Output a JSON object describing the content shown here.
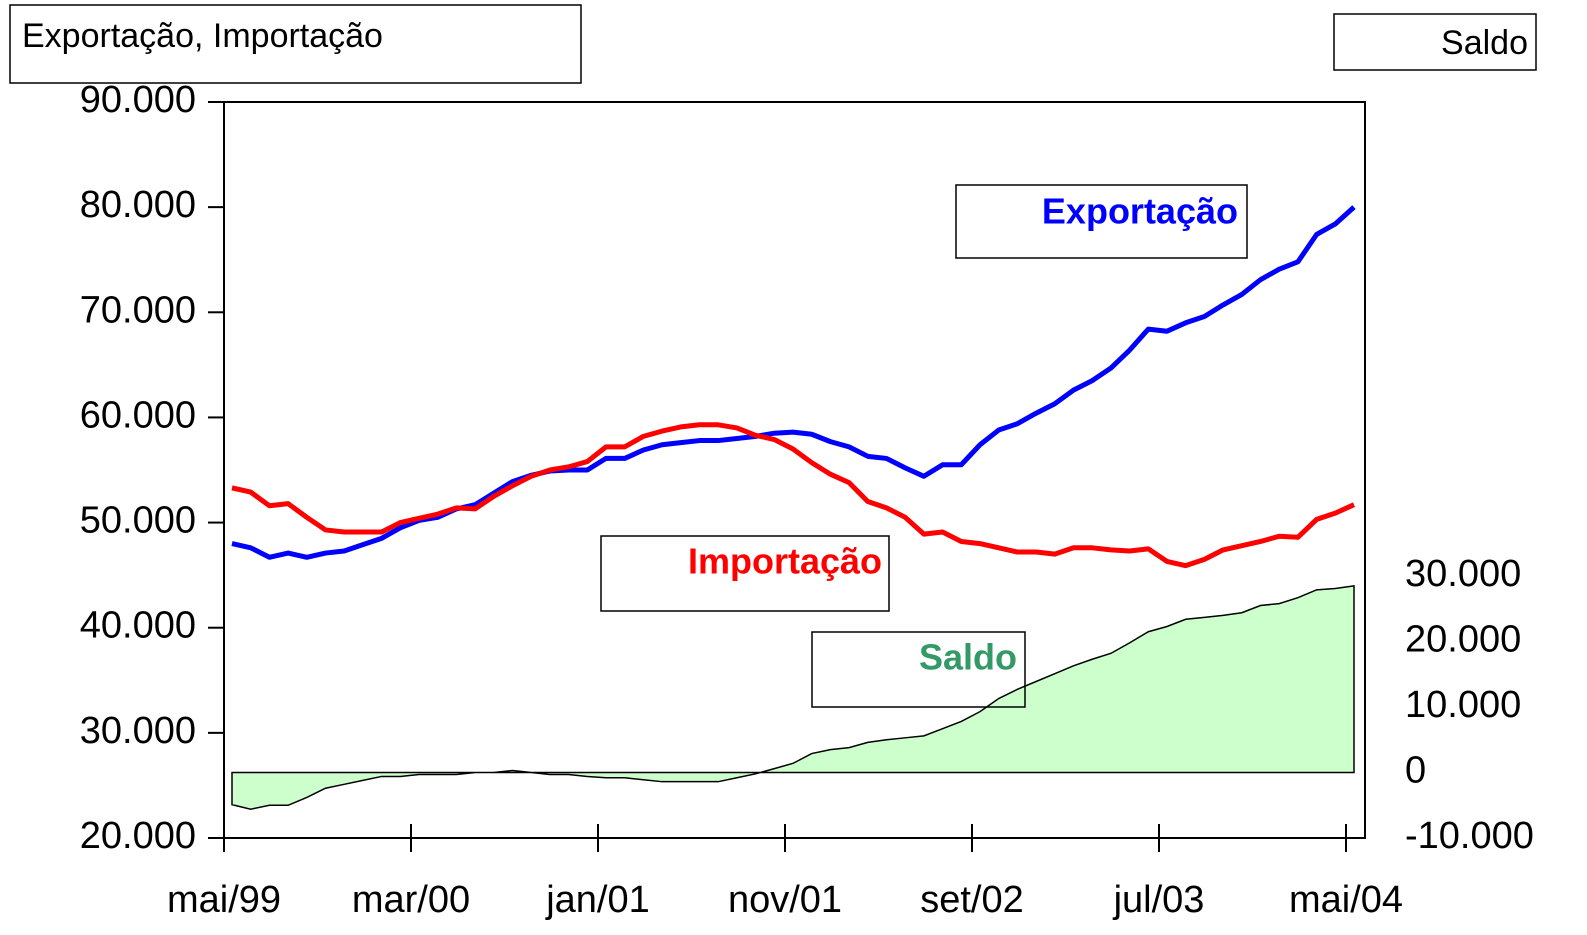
{
  "chart_data": {
    "type": "line",
    "y_title": "Exportação, Importação",
    "y2_title": "Saldo",
    "categories": [
      "mai/99",
      null,
      null,
      null,
      null,
      null,
      null,
      null,
      null,
      null,
      "mar/00",
      null,
      null,
      null,
      null,
      null,
      null,
      null,
      null,
      null,
      "jan/01",
      null,
      null,
      null,
      null,
      null,
      null,
      null,
      null,
      null,
      "nov/01",
      null,
      null,
      null,
      null,
      null,
      null,
      null,
      null,
      null,
      "set/02",
      null,
      null,
      null,
      null,
      null,
      null,
      null,
      null,
      null,
      "jul/03",
      null,
      null,
      null,
      null,
      null,
      null,
      null,
      null,
      null,
      "mai/04"
    ],
    "ylim": [
      20000,
      90000
    ],
    "yticks": [
      {
        "value": 20000,
        "label": "20.000"
      },
      {
        "value": 30000,
        "label": "30.000"
      },
      {
        "value": 40000,
        "label": "40.000"
      },
      {
        "value": 50000,
        "label": "50.000"
      },
      {
        "value": 60000,
        "label": "60.000"
      },
      {
        "value": 70000,
        "label": "70.000"
      },
      {
        "value": 80000,
        "label": "80.000"
      },
      {
        "value": 90000,
        "label": "90.000"
      }
    ],
    "y2lim": [
      -10000,
      102400
    ],
    "y2ticks": [
      {
        "value": -10000,
        "label": "-10.000"
      },
      0,
      {
        "value": 10000,
        "label": "10.000"
      },
      {
        "value": 20000,
        "label": "20.000"
      },
      {
        "value": 30000,
        "label": "30.000"
      }
    ],
    "series": [
      {
        "name": "Exportação",
        "color": "#0000ff",
        "values": [
          48000,
          47600,
          46700,
          47100,
          46700,
          47100,
          47300,
          47900,
          48500,
          49500,
          50200,
          50500,
          51300,
          51700,
          52800,
          53900,
          54500,
          54900,
          55000,
          55000,
          56100,
          56100,
          56900,
          57400,
          57600,
          57800,
          57800,
          58000,
          58200,
          58500,
          58600,
          58400,
          57700,
          57200,
          56300,
          56100,
          55200,
          54400,
          55500,
          55500,
          57400,
          58800,
          59400,
          60400,
          61300,
          62600,
          63500,
          64700,
          66400,
          68400,
          68200,
          69000,
          69600,
          70700,
          71700,
          73100,
          74100,
          74800,
          77400,
          78400,
          80000
        ]
      },
      {
        "name": "Importação",
        "color": "#ff0000",
        "values": [
          53300,
          52900,
          51600,
          51800,
          50500,
          49300,
          49100,
          49100,
          49100,
          50000,
          50400,
          50800,
          51400,
          51300,
          52500,
          53500,
          54400,
          55000,
          55300,
          55800,
          57200,
          57200,
          58200,
          58700,
          59100,
          59300,
          59300,
          59000,
          58300,
          57900,
          57000,
          55700,
          54600,
          53800,
          52000,
          51400,
          50500,
          48900,
          49100,
          48200,
          48000,
          47600,
          47200,
          47200,
          47000,
          47600,
          47600,
          47400,
          47300,
          47500,
          46300,
          45900,
          46500,
          47400,
          47800,
          48200,
          48700,
          48600,
          50300,
          50900,
          51700
        ]
      },
      {
        "name": "Saldo",
        "axis": "y2",
        "color": "#ccffcc",
        "line_color": "#000000",
        "label_color": "#339966",
        "values": [
          -4900,
          -5600,
          -5000,
          -5000,
          -3800,
          -2400,
          -1800,
          -1200,
          -600,
          -600,
          -300,
          -300,
          -300,
          0,
          0,
          300,
          0,
          -300,
          -300,
          -600,
          -800,
          -800,
          -1100,
          -1400,
          -1400,
          -1400,
          -1400,
          -800,
          -200,
          600,
          1400,
          2900,
          3500,
          3800,
          4600,
          5000,
          5300,
          5600,
          6700,
          7800,
          9300,
          11300,
          12700,
          13900,
          15100,
          16300,
          17300,
          18200,
          19800,
          21500,
          22300,
          23400,
          23700,
          24000,
          24400,
          25500,
          25800,
          26700,
          27900,
          28100,
          28500
        ]
      }
    ]
  }
}
